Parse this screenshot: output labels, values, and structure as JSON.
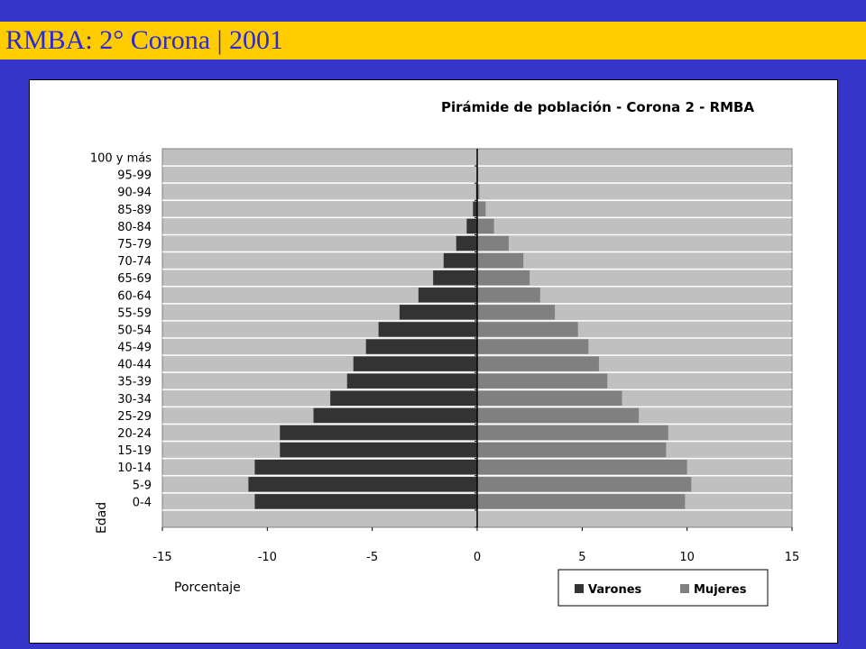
{
  "header": {
    "title": "RMBA: 2° Corona | 2001"
  },
  "chart_data": {
    "type": "bar",
    "orientation": "horizontal",
    "title": "Pirámide de población - Corona 2 - RMBA",
    "xlabel": "Porcentaje",
    "ylabel": "Edad",
    "xlim": [
      -15,
      15
    ],
    "xticks": [
      -15,
      -10,
      -5,
      0,
      5,
      10,
      15
    ],
    "grid": true,
    "legend_position": "bottom-right",
    "categories": [
      "",
      "0-4",
      "5-9",
      "10-14",
      "15-19",
      "20-24",
      "25-29",
      "30-34",
      "35-39",
      "40-44",
      "45-49",
      "50-54",
      "55-59",
      "60-64",
      "65-69",
      "70-74",
      "75-79",
      "80-84",
      "85-89",
      "90-94",
      "95-99",
      "100 y más"
    ],
    "series": [
      {
        "name": "Varones",
        "color": "#333333",
        "values": [
          0,
          -10.6,
          -10.9,
          -10.6,
          -9.4,
          -9.4,
          -7.8,
          -7.0,
          -6.2,
          -5.9,
          -5.3,
          -4.7,
          -3.7,
          -2.8,
          -2.1,
          -1.6,
          -1.0,
          -0.5,
          -0.2,
          -0.05,
          -0.02,
          0
        ]
      },
      {
        "name": "Mujeres",
        "color": "#808080",
        "values": [
          0,
          9.9,
          10.2,
          10.0,
          9.0,
          9.1,
          7.7,
          6.9,
          6.2,
          5.8,
          5.3,
          4.8,
          3.7,
          3.0,
          2.5,
          2.2,
          1.5,
          0.8,
          0.4,
          0.1,
          0.05,
          0.02
        ]
      }
    ]
  }
}
